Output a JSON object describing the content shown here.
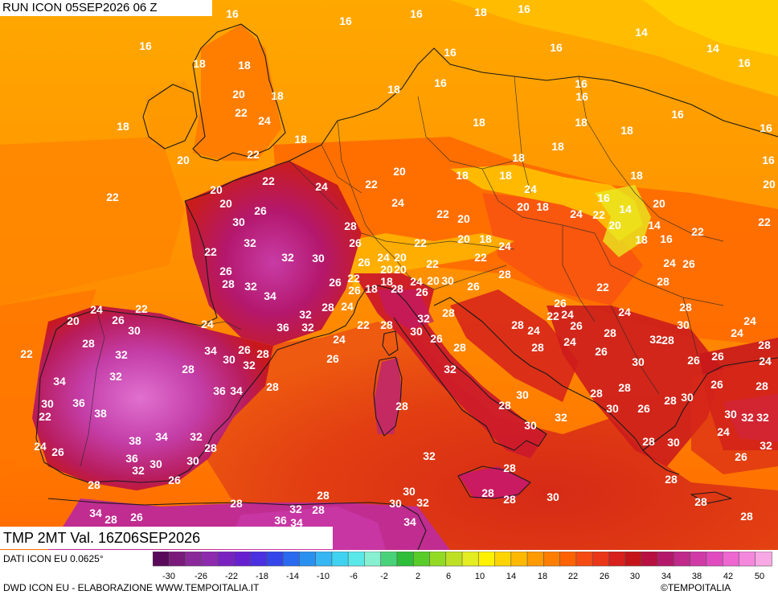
{
  "header": {
    "run_label": "RUN ICON 05SEP2026 06 Z"
  },
  "variable_label": "TMP 2MT Val. 16Z06SEP2026",
  "footer": {
    "data_source": "DATI ICON EU 0.0625°",
    "credit": "DWD ICON EU - ELABORAZIONE WWW.TEMPOITALIA.IT",
    "copyright": "©TEMPOITALIA"
  },
  "legend": {
    "tick_labels": [
      "-30",
      "-26",
      "-22",
      "-18",
      "-14",
      "-10",
      "-6",
      "-2",
      "2",
      "6",
      "10",
      "14",
      "18",
      "22",
      "26",
      "30",
      "34",
      "38",
      "42",
      "50"
    ],
    "colors": [
      "#5a0a5a",
      "#7a1a7a",
      "#8a2a9a",
      "#8e2aae",
      "#7a22c0",
      "#6620d0",
      "#4a30e0",
      "#3446ea",
      "#2a6af0",
      "#2a90f0",
      "#36b6f2",
      "#40d2f0",
      "#5ae8e8",
      "#86f0d0",
      "#4ad27a",
      "#2ebe3a",
      "#58cc28",
      "#92da24",
      "#bee024",
      "#e4ec22",
      "#fff200",
      "#ffd400",
      "#ffb800",
      "#ff9a00",
      "#ff7e00",
      "#ff6200",
      "#f64a14",
      "#ea3618",
      "#d8201c",
      "#c4141a",
      "#b81040",
      "#b4186a",
      "#c0288a",
      "#d03aa6",
      "#e04cc0",
      "#ee66d0",
      "#f488dc",
      "#f8a8e4"
    ]
  },
  "temperature_labels": [
    {
      "v": "16"
    },
    {
      "v": "16"
    },
    {
      "v": "16"
    },
    {
      "v": "18"
    },
    {
      "v": "16"
    },
    {
      "v": "14"
    },
    {
      "v": "14"
    },
    {
      "v": "16"
    },
    {
      "v": "16"
    },
    {
      "v": "18"
    },
    {
      "v": "18"
    },
    {
      "v": "16"
    },
    {
      "v": "16"
    },
    {
      "v": "16"
    },
    {
      "v": "20"
    },
    {
      "v": "18"
    },
    {
      "v": "18"
    },
    {
      "v": "16"
    },
    {
      "v": "16"
    },
    {
      "v": "22"
    },
    {
      "v": "24"
    },
    {
      "v": "18"
    },
    {
      "v": "18"
    },
    {
      "v": "16"
    },
    {
      "v": "16"
    },
    {
      "v": "18"
    },
    {
      "v": "20"
    },
    {
      "v": "22"
    },
    {
      "v": "18"
    },
    {
      "v": "18"
    },
    {
      "v": "20"
    },
    {
      "v": "22"
    },
    {
      "v": "20"
    },
    {
      "v": "18"
    },
    {
      "v": "18"
    },
    {
      "v": "18"
    },
    {
      "v": "18"
    },
    {
      "v": "22"
    },
    {
      "v": "24"
    },
    {
      "v": "22"
    },
    {
      "v": "16"
    },
    {
      "v": "18"
    },
    {
      "v": "20"
    },
    {
      "v": "20"
    },
    {
      "v": "24"
    },
    {
      "v": "26"
    },
    {
      "v": "24"
    },
    {
      "v": "22"
    },
    {
      "v": "20"
    },
    {
      "v": "20"
    },
    {
      "v": "18"
    },
    {
      "v": "24"
    },
    {
      "v": "22"
    },
    {
      "v": "16"
    },
    {
      "v": "14"
    },
    {
      "v": "20"
    },
    {
      "v": "22"
    },
    {
      "v": "30"
    },
    {
      "v": "28"
    },
    {
      "v": "20"
    },
    {
      "v": "14"
    },
    {
      "v": "18"
    },
    {
      "v": "16"
    },
    {
      "v": "22"
    },
    {
      "v": "32"
    },
    {
      "v": "26"
    },
    {
      "v": "22"
    },
    {
      "v": "20"
    },
    {
      "v": "18"
    },
    {
      "v": "24"
    },
    {
      "v": "22"
    },
    {
      "v": "32"
    },
    {
      "v": "30"
    },
    {
      "v": "26"
    },
    {
      "v": "24"
    },
    {
      "v": "20"
    },
    {
      "v": "22"
    },
    {
      "v": "22"
    },
    {
      "v": "24"
    },
    {
      "v": "26"
    },
    {
      "v": "26"
    },
    {
      "v": "28"
    },
    {
      "v": "32"
    },
    {
      "v": "26"
    },
    {
      "v": "22"
    },
    {
      "v": "18"
    },
    {
      "v": "26"
    },
    {
      "v": "20"
    },
    {
      "v": "20"
    },
    {
      "v": "18"
    },
    {
      "v": "28"
    },
    {
      "v": "24"
    },
    {
      "v": "20"
    },
    {
      "v": "30"
    },
    {
      "v": "26"
    },
    {
      "v": "22"
    },
    {
      "v": "28"
    },
    {
      "v": "34"
    },
    {
      "v": "28"
    },
    {
      "v": "24"
    },
    {
      "v": "28"
    },
    {
      "v": "26"
    },
    {
      "v": "26"
    },
    {
      "v": "24"
    },
    {
      "v": "24"
    },
    {
      "v": "22"
    },
    {
      "v": "26"
    },
    {
      "v": "32"
    },
    {
      "v": "28"
    },
    {
      "v": "22"
    },
    {
      "v": "24"
    },
    {
      "v": "28"
    },
    {
      "v": "22"
    },
    {
      "v": "24"
    },
    {
      "v": "32"
    },
    {
      "v": "24"
    },
    {
      "v": "20"
    },
    {
      "v": "28"
    },
    {
      "v": "30"
    },
    {
      "v": "36"
    },
    {
      "v": "32"
    },
    {
      "v": "24"
    },
    {
      "v": "28"
    },
    {
      "v": "30"
    },
    {
      "v": "28"
    },
    {
      "v": "24"
    },
    {
      "v": "26"
    },
    {
      "v": "30"
    },
    {
      "v": "24"
    },
    {
      "v": "22"
    },
    {
      "v": "32"
    },
    {
      "v": "34"
    },
    {
      "v": "30"
    },
    {
      "v": "26"
    },
    {
      "v": "28"
    },
    {
      "v": "26"
    },
    {
      "v": "28"
    },
    {
      "v": "26"
    },
    {
      "v": "28"
    },
    {
      "v": "24"
    },
    {
      "v": "28"
    },
    {
      "v": "26"
    },
    {
      "v": "24"
    },
    {
      "v": "28"
    },
    {
      "v": "32"
    },
    {
      "v": "32"
    },
    {
      "v": "30"
    },
    {
      "v": "28"
    },
    {
      "v": "26"
    },
    {
      "v": "32"
    },
    {
      "v": "26"
    },
    {
      "v": "28"
    },
    {
      "v": "34"
    },
    {
      "v": "32"
    },
    {
      "v": "36"
    },
    {
      "v": "34"
    },
    {
      "v": "28"
    },
    {
      "v": "30"
    },
    {
      "v": "28"
    },
    {
      "v": "28"
    },
    {
      "v": "26"
    },
    {
      "v": "28"
    },
    {
      "v": "30"
    },
    {
      "v": "36"
    },
    {
      "v": "38"
    },
    {
      "v": "30"
    },
    {
      "v": "28"
    },
    {
      "v": "30"
    },
    {
      "v": "32"
    },
    {
      "v": "26"
    },
    {
      "v": "30"
    },
    {
      "v": "32"
    },
    {
      "v": "28"
    },
    {
      "v": "22"
    },
    {
      "v": "38"
    },
    {
      "v": "34"
    },
    {
      "v": "32"
    },
    {
      "v": "32"
    },
    {
      "v": "30"
    },
    {
      "v": "28"
    },
    {
      "v": "24"
    },
    {
      "v": "28"
    },
    {
      "v": "30"
    },
    {
      "v": "32"
    },
    {
      "v": "26"
    },
    {
      "v": "24"
    },
    {
      "v": "26"
    },
    {
      "v": "36"
    },
    {
      "v": "30"
    },
    {
      "v": "30"
    },
    {
      "v": "32"
    },
    {
      "v": "28"
    },
    {
      "v": "32"
    },
    {
      "v": "26"
    },
    {
      "v": "28"
    },
    {
      "v": "30"
    },
    {
      "v": "28"
    },
    {
      "v": "28"
    },
    {
      "v": "28"
    },
    {
      "v": "28"
    },
    {
      "v": "30"
    },
    {
      "v": "28"
    },
    {
      "v": "28"
    },
    {
      "v": "34"
    },
    {
      "v": "28"
    },
    {
      "v": "26"
    },
    {
      "v": "28"
    },
    {
      "v": "32"
    },
    {
      "v": "30"
    },
    {
      "v": "32"
    },
    {
      "v": "36"
    },
    {
      "v": "34"
    },
    {
      "v": "34"
    },
    {
      "v": "28"
    },
    {
      "v": "28"
    }
  ]
}
